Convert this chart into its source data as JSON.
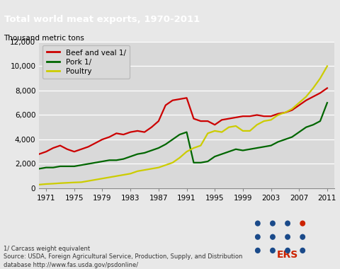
{
  "title": "Total world meat exports, 1970-2011",
  "ylabel": "Thousand metric tons",
  "header_color": "#1b3a5c",
  "plot_bg": "#d9d9d9",
  "fig_bg": "#e8e8e8",
  "ylim": [
    0,
    12000
  ],
  "yticks": [
    0,
    2000,
    4000,
    6000,
    8000,
    10000,
    12000
  ],
  "xtick_labels": [
    "1971",
    "1975",
    "1979",
    "1983",
    "1987",
    "1991",
    "1995",
    "1999",
    "2003",
    "2007",
    "2011"
  ],
  "xtick_positions": [
    1971,
    1975,
    1979,
    1983,
    1987,
    1991,
    1995,
    1999,
    2003,
    2007,
    2011
  ],
  "footnote_line1": "1/ Carcass weight equivalent",
  "footnote_line2": "Source: USDA, Foreign Agricultural Service, Production, Supply, and Distribution",
  "footnote_line3": "database http://www.fas.usda.gov/psdonline/",
  "beef": {
    "label": "Beef and veal 1/",
    "color": "#cc0000",
    "years": [
      1970,
      1971,
      1972,
      1973,
      1974,
      1975,
      1976,
      1977,
      1978,
      1979,
      1980,
      1981,
      1982,
      1983,
      1984,
      1985,
      1986,
      1987,
      1988,
      1989,
      1990,
      1991,
      1992,
      1993,
      1994,
      1995,
      1996,
      1997,
      1998,
      1999,
      2000,
      2001,
      2002,
      2003,
      2004,
      2005,
      2006,
      2007,
      2008,
      2009,
      2010,
      2011
    ],
    "values": [
      2800,
      3000,
      3300,
      3500,
      3200,
      3000,
      3200,
      3400,
      3700,
      4000,
      4200,
      4500,
      4400,
      4600,
      4700,
      4600,
      5000,
      5500,
      6800,
      7200,
      7300,
      7400,
      5700,
      5500,
      5500,
      5200,
      5600,
      5700,
      5800,
      5900,
      5900,
      6000,
      5900,
      5900,
      6100,
      6200,
      6400,
      6800,
      7200,
      7500,
      7800,
      8200
    ]
  },
  "pork": {
    "label": "Pork 1/",
    "color": "#006600",
    "years": [
      1970,
      1971,
      1972,
      1973,
      1974,
      1975,
      1976,
      1977,
      1978,
      1979,
      1980,
      1981,
      1982,
      1983,
      1984,
      1985,
      1986,
      1987,
      1988,
      1989,
      1990,
      1991,
      1992,
      1993,
      1994,
      1995,
      1996,
      1997,
      1998,
      1999,
      2000,
      2001,
      2002,
      2003,
      2004,
      2005,
      2006,
      2007,
      2008,
      2009,
      2010,
      2011
    ],
    "values": [
      1600,
      1700,
      1700,
      1800,
      1800,
      1800,
      1900,
      2000,
      2100,
      2200,
      2300,
      2300,
      2400,
      2600,
      2800,
      2900,
      3100,
      3300,
      3600,
      4000,
      4400,
      4600,
      2100,
      2100,
      2200,
      2600,
      2800,
      3000,
      3200,
      3100,
      3200,
      3300,
      3400,
      3500,
      3800,
      4000,
      4200,
      4600,
      5000,
      5200,
      5500,
      7000
    ]
  },
  "poultry": {
    "label": "Poultry",
    "color": "#cccc00",
    "years": [
      1970,
      1971,
      1972,
      1973,
      1974,
      1975,
      1976,
      1977,
      1978,
      1979,
      1980,
      1981,
      1982,
      1983,
      1984,
      1985,
      1986,
      1987,
      1988,
      1989,
      1990,
      1991,
      1992,
      1993,
      1994,
      1995,
      1996,
      1997,
      1998,
      1999,
      2000,
      2001,
      2002,
      2003,
      2004,
      2005,
      2006,
      2007,
      2008,
      2009,
      2010,
      2011
    ],
    "values": [
      300,
      350,
      380,
      420,
      450,
      480,
      500,
      600,
      700,
      800,
      900,
      1000,
      1100,
      1200,
      1400,
      1500,
      1600,
      1700,
      1900,
      2100,
      2500,
      3000,
      3300,
      3500,
      4500,
      4700,
      4600,
      5000,
      5100,
      4700,
      4700,
      5200,
      5500,
      5600,
      6000,
      6200,
      6500,
      7000,
      7500,
      8200,
      9000,
      10000
    ]
  },
  "dot_color": "#1a4a8a",
  "ers_color": "#cc2200"
}
